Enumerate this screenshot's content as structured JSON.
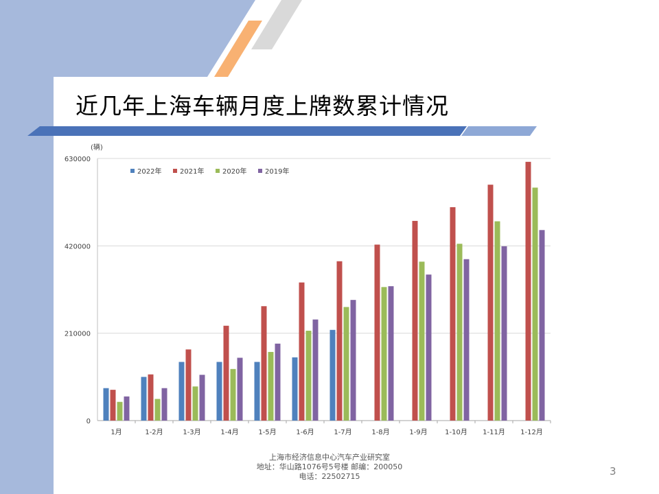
{
  "slide": {
    "title": "近几年上海车辆月度上牌数累计情况",
    "page_number": "3",
    "footer": {
      "line1": "上海市经济信息中心汽车产业研究室",
      "line2": "地址：华山路1076号5号楼   邮编：200050",
      "line3": "电话：22502715"
    },
    "colors": {
      "left_band": "#a6b9dc",
      "top_band": "#a6b9dc",
      "accent_orange": "#f8b172",
      "accent_gray": "#d9d9d9",
      "title_rule": "#4a72b8"
    }
  },
  "chart_data": {
    "type": "bar",
    "unit_label": "(辆)",
    "categories": [
      "1月",
      "1-2月",
      "1-3月",
      "1-4月",
      "1-5月",
      "1-6月",
      "1-7月",
      "1-8月",
      "1-9月",
      "1-10月",
      "1-11月",
      "1-12月"
    ],
    "series": [
      {
        "name": "2022年",
        "color": "#4f81bd",
        "values": [
          78000,
          105000,
          141000,
          141000,
          141000,
          152000,
          218000,
          null,
          null,
          null,
          null,
          null
        ]
      },
      {
        "name": "2021年",
        "color": "#c0504d",
        "values": [
          74000,
          111000,
          171000,
          228000,
          275000,
          332000,
          383000,
          423000,
          480000,
          513000,
          567000,
          622000
        ]
      },
      {
        "name": "2020年",
        "color": "#9bbb59",
        "values": [
          45000,
          52000,
          82000,
          124000,
          165000,
          216000,
          273000,
          321000,
          382000,
          425000,
          479000,
          560000
        ]
      },
      {
        "name": "2019年",
        "color": "#8064a2",
        "values": [
          58000,
          78000,
          110000,
          151000,
          185000,
          243000,
          290000,
          323000,
          351000,
          388000,
          419000,
          458000
        ]
      }
    ],
    "y_ticks": [
      "0",
      "210000",
      "420000",
      "630000"
    ],
    "ylim": [
      0,
      630000
    ],
    "legend_position": "top-left",
    "grid": true
  }
}
